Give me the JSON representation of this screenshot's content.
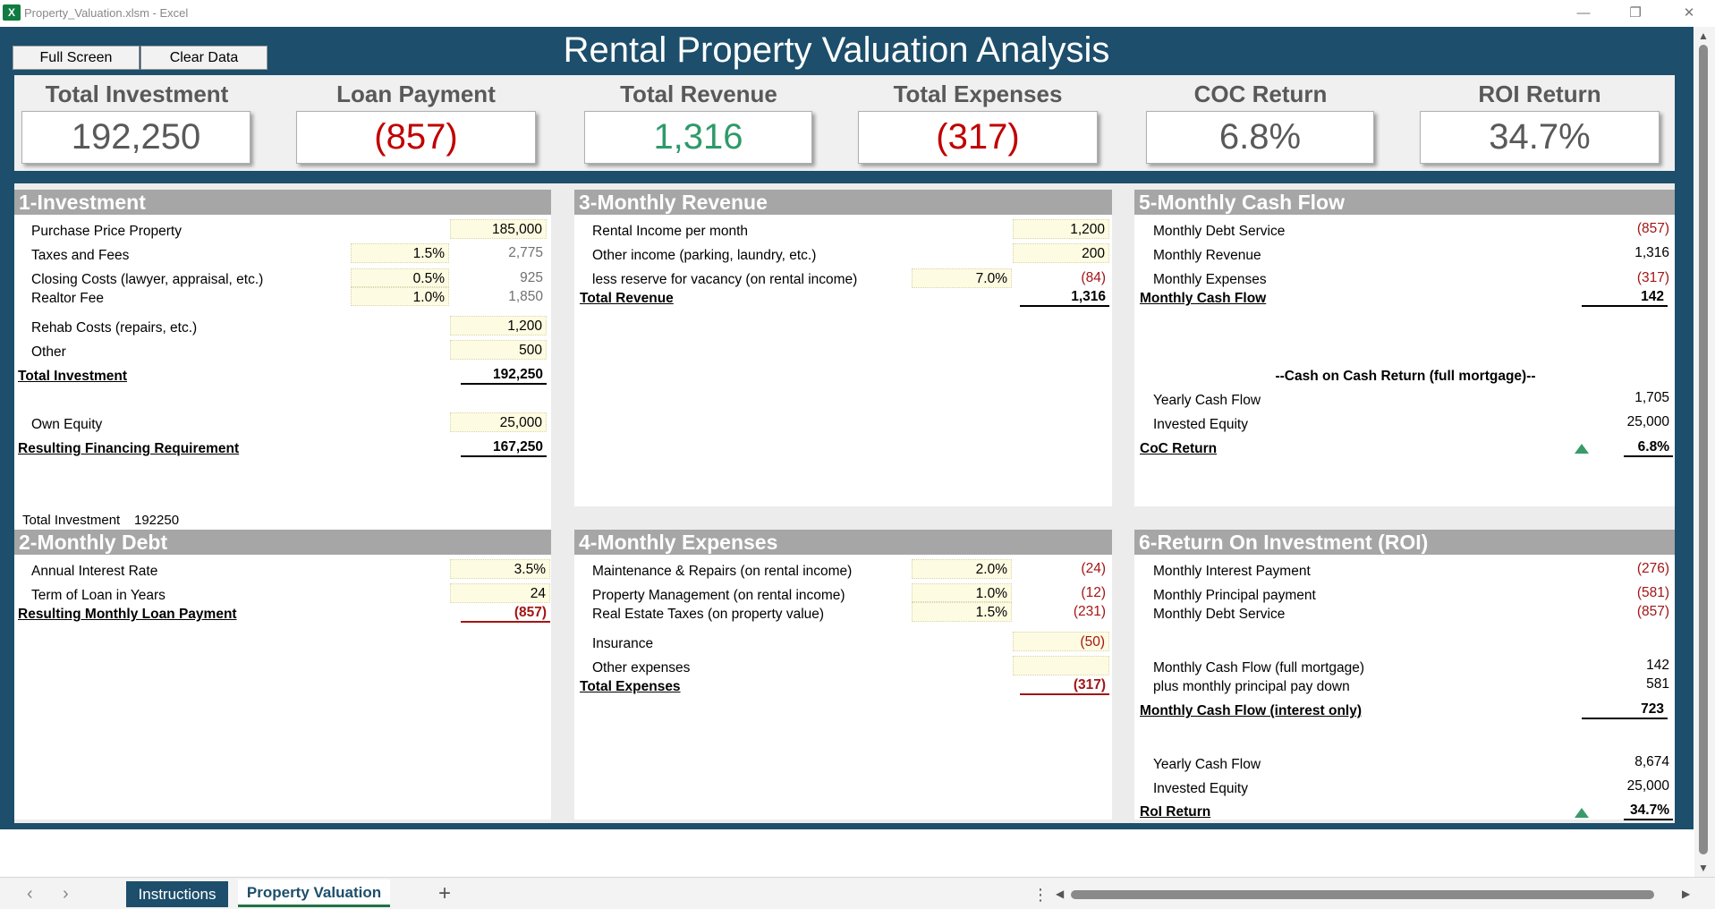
{
  "window": {
    "title": "Property_Valuation.xlsm - Excel",
    "app_icon": "excel-icon",
    "app_icon_letter": "X",
    "minimize": "—",
    "restore": "❐",
    "close": "✕"
  },
  "toolbar": {
    "full_screen_label": "Full Screen",
    "clear_data_label": "Clear Data"
  },
  "dashboard_title": "Rental Property Valuation Analysis",
  "kpis": [
    {
      "label": "Total Investment",
      "value": "192,250",
      "color": "#595959"
    },
    {
      "label": "Loan Payment",
      "value": "(857)",
      "color": "#c00000"
    },
    {
      "label": "Total Revenue",
      "value": "1,316",
      "color": "#2e9a6a"
    },
    {
      "label": "Total Expenses",
      "value": "(317)",
      "color": "#c00000"
    },
    {
      "label": "COC Return",
      "value": "6.8%",
      "color": "#595959"
    },
    {
      "label": "ROI Return",
      "value": "34.7%",
      "color": "#595959"
    }
  ],
  "investment": {
    "title": "1-Investment",
    "purchase_price_label": "Purchase Price Property",
    "purchase_price_value": "185,000",
    "taxes_label": "Taxes and Fees",
    "taxes_pct": "1.5%",
    "taxes_value": "2,775",
    "closing_label": "Closing Costs (lawyer, appraisal, etc.)",
    "closing_pct": "0.5%",
    "closing_value": "925",
    "realtor_label": "Realtor Fee",
    "realtor_pct": "1.0%",
    "realtor_value": "1,850",
    "rehab_label": "Rehab Costs (repairs, etc.)",
    "rehab_value": "1,200",
    "other_label": "Other",
    "other_value": "500",
    "total_label": "Total Investment",
    "total_value": "192,250",
    "equity_label": "Own Equity",
    "equity_value": "25,000",
    "financing_label": "Resulting Financing Requirement",
    "financing_value": "167,250",
    "footer_label": "Total Investment",
    "footer_value": "192250"
  },
  "debt": {
    "title": "2-Monthly Debt",
    "rate_label": "Annual Interest Rate",
    "rate_value": "3.5%",
    "term_label": "Term of Loan in Years",
    "term_value": "24",
    "payment_label": "Resulting Monthly Loan Payment",
    "payment_value": "(857)"
  },
  "revenue": {
    "title": "3-Monthly Revenue",
    "rental_label": "Rental Income per month",
    "rental_value": "1,200",
    "other_label": "Other income (parking, laundry, etc.)",
    "other_value": "200",
    "vacancy_label": "less reserve for vacancy (on rental income)",
    "vacancy_pct": "7.0%",
    "vacancy_value": "(84)",
    "total_label": "Total Revenue",
    "total_value": "1,316"
  },
  "expenses": {
    "title": "4-Monthly Expenses",
    "maintenance_label": "Maintenance & Repairs (on rental income)",
    "maintenance_pct": "2.0%",
    "maintenance_value": "(24)",
    "management_label": "Property Management (on rental income)",
    "management_pct": "1.0%",
    "management_value": "(12)",
    "tax_label": "Real Estate Taxes (on property value)",
    "tax_pct": "1.5%",
    "tax_value": "(231)",
    "insurance_label": "Insurance",
    "insurance_value": "(50)",
    "other_label": "Other expenses",
    "other_value": "",
    "total_label": "Total Expenses",
    "total_value": "(317)"
  },
  "cashflow": {
    "title": "5-Monthly Cash Flow",
    "debt_service_label": "Monthly Debt Service",
    "debt_service_value": "(857)",
    "revenue_label": "Monthly Revenue",
    "revenue_value": "1,316",
    "expenses_label": "Monthly Expenses",
    "expenses_value": "(317)",
    "total_label": "Monthly Cash Flow",
    "total_value": "142",
    "coc_heading": "--Cash on Cash Return (full mortgage)--",
    "yearly_label": "Yearly Cash Flow",
    "yearly_value": "1,705",
    "equity_label": "Invested Equity",
    "equity_value": "25,000",
    "coc_label": "CoC Return",
    "coc_value": "6.8%",
    "coc_indicator": "triangle-up-icon"
  },
  "roi": {
    "title": "6-Return On Investment (ROI)",
    "interest_label": "Monthly Interest Payment",
    "interest_value": "(276)",
    "principal_label": "Monthly Principal payment",
    "principal_value": "(581)",
    "debt_service_label": "Monthly Debt Service",
    "debt_service_value": "(857)",
    "cf_full_label": "Monthly Cash Flow (full mortgage)",
    "cf_full_value": "142",
    "paydown_label": "plus monthly principal pay down",
    "paydown_value": "581",
    "cf_io_label": "Monthly Cash Flow (interest only)",
    "cf_io_value": "723",
    "yearly_label": "Yearly Cash Flow",
    "yearly_value": "8,674",
    "equity_label": "Invested Equity",
    "equity_value": "25,000",
    "roi_label": "RoI Return",
    "roi_value": "34.7%",
    "roi_indicator": "triangle-up-icon"
  },
  "sheet_tabs": {
    "prev": "‹",
    "next": "›",
    "tabs": [
      "Instructions",
      "Property Valuation"
    ],
    "active": "Property Valuation",
    "add": "+",
    "more": "⋮"
  }
}
